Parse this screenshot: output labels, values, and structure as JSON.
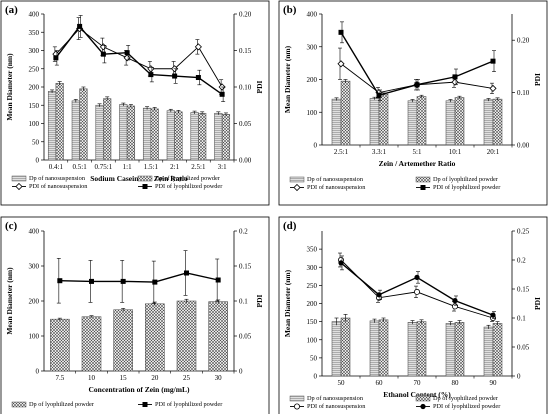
{
  "chart_data": [
    {
      "panel_label": "(a)",
      "type": "bar",
      "xlabel": "Sodium Caseinate / Zein Ratio",
      "ylabel": "Mean Diameter (nm)",
      "y2label": "PDI",
      "ylim": [
        0,
        400
      ],
      "y_ticks": [
        "0",
        "50",
        "100",
        "150",
        "200",
        "250",
        "300",
        "350",
        "400"
      ],
      "y2lim": [
        0,
        0.2
      ],
      "y2_ticks": [
        "0.00",
        "0.05",
        "0.10",
        "0.15",
        "0.20"
      ],
      "categories": [
        "0.4:1",
        "0.5:1",
        "0.75:1",
        "1:1",
        "1.5:1",
        "2:1",
        "2.5:1",
        "3:1"
      ],
      "bars": [
        {
          "name": "Dp of nanosuspension",
          "values": [
            188,
            162,
            150,
            152,
            142,
            135,
            130,
            128
          ],
          "errors": [
            4,
            4,
            4,
            4,
            4,
            4,
            4,
            4
          ]
        },
        {
          "name": "Dp of lyophilized powder",
          "values": [
            210,
            195,
            168,
            148,
            140,
            132,
            128,
            125
          ],
          "errors": [
            5,
            5,
            5,
            4,
            4,
            4,
            4,
            4
          ]
        }
      ],
      "lines": [
        {
          "name": "PDI of nanosuspension",
          "marker": "open-diamond",
          "values": [
            0.145,
            0.18,
            0.155,
            0.14,
            0.125,
            0.125,
            0.155,
            0.1
          ],
          "errors": [
            0.01,
            0.015,
            0.012,
            0.01,
            0.01,
            0.01,
            0.01,
            0.01
          ]
        },
        {
          "name": "PDI of lyophilized powder",
          "marker": "filled-square",
          "values": [
            0.14,
            0.183,
            0.145,
            0.147,
            0.117,
            0.115,
            0.113,
            0.09
          ],
          "errors": [
            0.01,
            0.015,
            0.012,
            0.01,
            0.01,
            0.01,
            0.01,
            0.01
          ]
        }
      ]
    },
    {
      "panel_label": "(b)",
      "type": "bar",
      "xlabel": "Zein / Artemether Ratio",
      "ylabel": "Mean Diameter (nm)",
      "y2label": "PDI",
      "ylim": [
        0,
        400
      ],
      "y_ticks": [
        "0",
        "100",
        "200",
        "300",
        "400"
      ],
      "y2lim": [
        0,
        0.25
      ],
      "y2_ticks": [
        "0.00",
        "0.10",
        "0.20"
      ],
      "categories": [
        "2.5:1",
        "3.3:1",
        "5:1",
        "10:1",
        "20:1"
      ],
      "bars": [
        {
          "name": "Dp of nanosuspension",
          "values": [
            140,
            142,
            135,
            135,
            138
          ],
          "errors": [
            4,
            4,
            4,
            4,
            4
          ]
        },
        {
          "name": "Dp of lyophilized powder",
          "values": [
            195,
            155,
            148,
            145,
            140
          ],
          "errors": [
            5,
            4,
            4,
            4,
            4
          ]
        }
      ],
      "lines": [
        {
          "name": "PDI of nanosuspension",
          "marker": "open-diamond",
          "values": [
            0.155,
            0.1,
            0.115,
            0.12,
            0.108
          ],
          "errors": [
            0.03,
            0.01,
            0.01,
            0.01,
            0.01
          ]
        },
        {
          "name": "PDI of lyophilized powder",
          "marker": "filled-square",
          "values": [
            0.215,
            0.095,
            0.115,
            0.13,
            0.16
          ],
          "errors": [
            0.02,
            0.01,
            0.01,
            0.015,
            0.02
          ]
        }
      ]
    },
    {
      "panel_label": "(c)",
      "type": "bar",
      "xlabel": "Concentration of Zein (mg/mL)",
      "ylabel": "Mean Diameter (nm)",
      "y2label": "PDI",
      "ylim": [
        0,
        400
      ],
      "y_ticks": [
        "0",
        "100",
        "200",
        "300",
        "400"
      ],
      "y2lim": [
        0,
        0.2
      ],
      "y2_ticks": [
        "0",
        "0.05",
        "0.1",
        "0.15",
        "0.2"
      ],
      "categories": [
        "7.5",
        "10",
        "15",
        "20",
        "25",
        "30"
      ],
      "bars": [
        {
          "name": "Dp of lyophilized powder",
          "values": [
            148,
            155,
            175,
            192,
            200,
            198
          ],
          "errors": [
            3,
            3,
            4,
            5,
            5,
            5
          ]
        }
      ],
      "lines": [
        {
          "name": "PDI of lyophilized powder",
          "marker": "filled-square",
          "values": [
            0.129,
            0.128,
            0.128,
            0.127,
            0.14,
            0.13
          ],
          "errors": [
            0.032,
            0.03,
            0.03,
            0.03,
            0.032,
            0.03
          ]
        }
      ]
    },
    {
      "panel_label": "(d)",
      "type": "bar",
      "xlabel": "Ethanol Content (%)",
      "ylabel": "Mean Diameter (nm)",
      "y2label": "PDI",
      "ylim": [
        0,
        400
      ],
      "y_ticks": [
        "0",
        "50",
        "100",
        "150",
        "200",
        "250",
        "300",
        "350"
      ],
      "y2lim": [
        0,
        0.25
      ],
      "y2_ticks": [
        "0",
        "0.05",
        "0.1",
        "0.15",
        "0.2",
        "0.25"
      ],
      "categories": [
        "50",
        "60",
        "70",
        "80",
        "90"
      ],
      "bars": [
        {
          "name": "Dp of nanosuspension",
          "values": [
            150,
            152,
            148,
            145,
            135
          ],
          "errors": [
            10,
            5,
            5,
            5,
            5
          ]
        },
        {
          "name": "Dp of lyophilized powder",
          "values": [
            160,
            155,
            150,
            148,
            145
          ],
          "errors": [
            10,
            5,
            5,
            5,
            5
          ]
        }
      ],
      "lines": [
        {
          "name": "PDI of nanosuspension",
          "marker": "open-circle",
          "values": [
            0.2,
            0.135,
            0.145,
            0.12,
            0.1
          ],
          "errors": [
            0.012,
            0.008,
            0.01,
            0.008,
            0.006
          ]
        },
        {
          "name": "PDI of lyophilized powder",
          "marker": "filled-circle",
          "values": [
            0.195,
            0.14,
            0.17,
            0.13,
            0.105
          ],
          "errors": [
            0.012,
            0.008,
            0.01,
            0.008,
            0.006
          ]
        }
      ]
    }
  ]
}
